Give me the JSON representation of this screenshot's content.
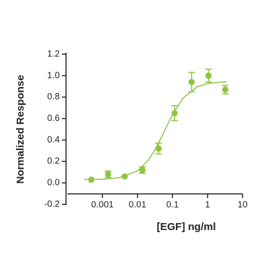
{
  "chart_data": {
    "type": "scatter",
    "x_label": "[EGF] ng/ml",
    "y_label": "Normalized Response",
    "xlog": true,
    "xlim": [
      0.0001,
      10
    ],
    "xticks": [
      0.001,
      0.01,
      0.1,
      1,
      10
    ],
    "ylim": [
      -0.2,
      1.2
    ],
    "yticks": [
      -0.2,
      {
        "value": 0,
        "label": "0.0"
      },
      0.2,
      0.4,
      0.6,
      0.8,
      {
        "value": 1,
        "label": "1.0"
      },
      1.2
    ],
    "color": "#8cc63e",
    "series": [
      {
        "x": [
          0.00048,
          0.00145,
          0.0043,
          0.0138,
          0.04,
          0.115,
          0.35,
          1.07,
          3.2
        ],
        "values": [
          0.03,
          0.08,
          0.06,
          0.12,
          0.32,
          0.65,
          0.94,
          1.0,
          0.87
        ],
        "errors": [
          0.0,
          0.03,
          0.0,
          0.03,
          0.05,
          0.07,
          0.09,
          0.06,
          0.04
        ]
      }
    ],
    "fit": {
      "x": [
        0.0003,
        0.001,
        0.003,
        0.01,
        0.02,
        0.03,
        0.05,
        0.07,
        0.1,
        0.2,
        0.5,
        1,
        3.5
      ],
      "values": [
        0.031,
        0.034,
        0.048,
        0.111,
        0.208,
        0.296,
        0.435,
        0.536,
        0.637,
        0.791,
        0.895,
        0.927,
        0.944
      ]
    }
  }
}
